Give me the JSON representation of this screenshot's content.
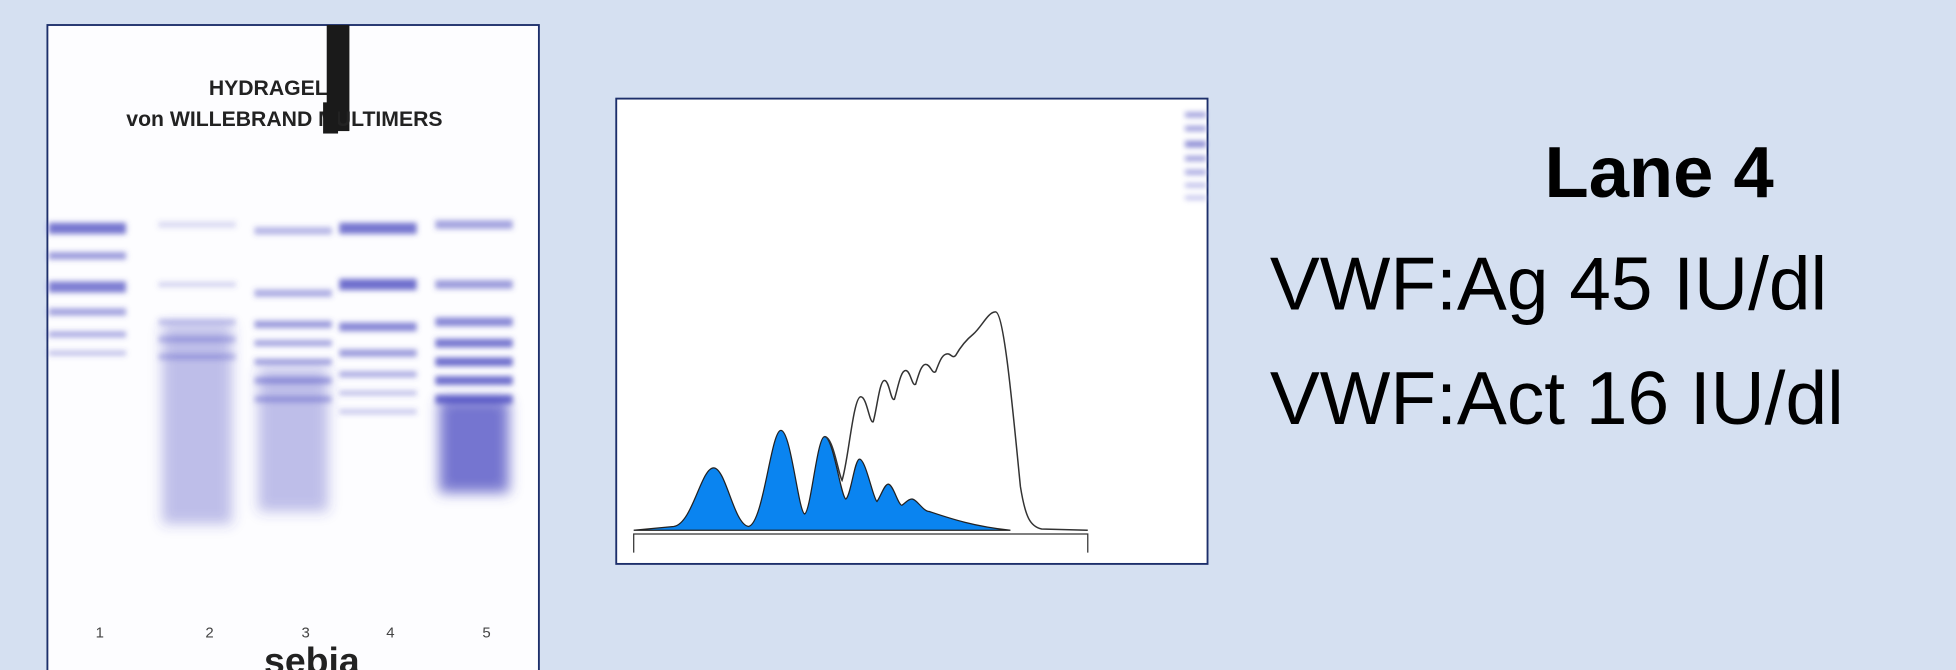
{
  "gel": {
    "title": "HYDRAGEL 5",
    "subtitle": "von WILLEBRAND MULTIMERS",
    "lanes": [
      "1",
      "2",
      "3",
      "4",
      "5"
    ],
    "brand": "sebia"
  },
  "info": {
    "heading": "Lane 4",
    "lines": [
      "VWF:Ag 45 IU/dl",
      "VWF:Act 16 IU/dl"
    ]
  }
}
